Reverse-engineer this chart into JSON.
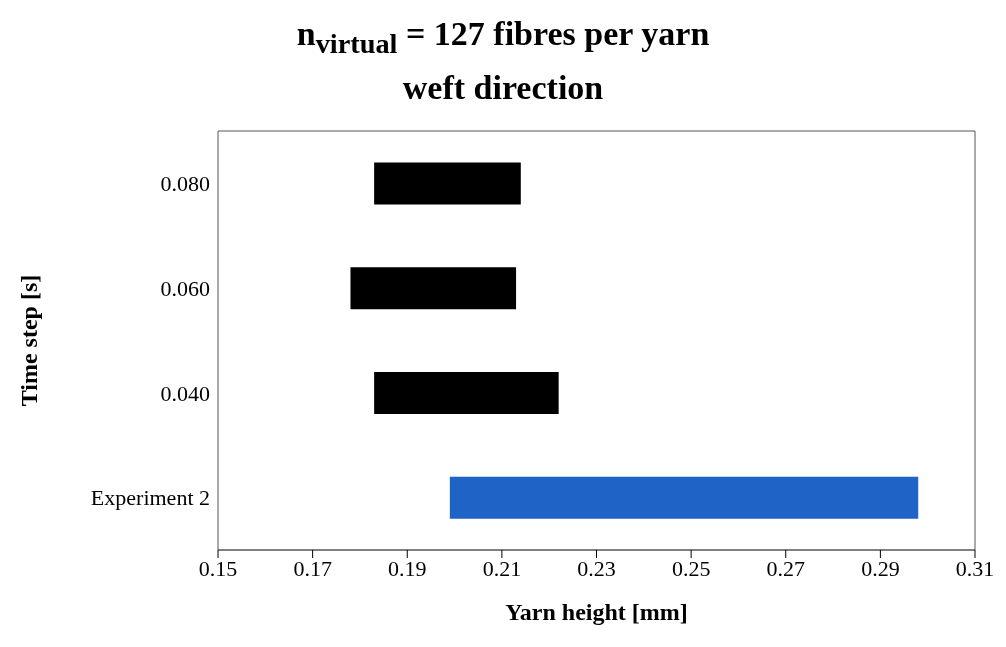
{
  "chart_data": {
    "type": "bar",
    "orientation": "horizontal",
    "title": "n$_{virtual}$ = 127 fibres per yarn",
    "subtitle": "weft direction",
    "xlabel": "Yarn height [mm]",
    "ylabel": "Time step [s]",
    "categories": [
      "0.080",
      "0.060",
      "0.040",
      "Experiment 2"
    ],
    "base": [
      0.183,
      0.178,
      0.183,
      0.199
    ],
    "values": [
      0.031,
      0.035,
      0.039,
      0.099
    ],
    "colors": [
      "#000000",
      "#000000",
      "#000000",
      "#1f63c6"
    ],
    "xlim": [
      0.15,
      0.31
    ],
    "xticks": [
      0.15,
      0.17,
      0.19,
      0.21,
      0.23,
      0.25,
      0.27,
      0.29,
      0.31
    ],
    "grid": false
  }
}
